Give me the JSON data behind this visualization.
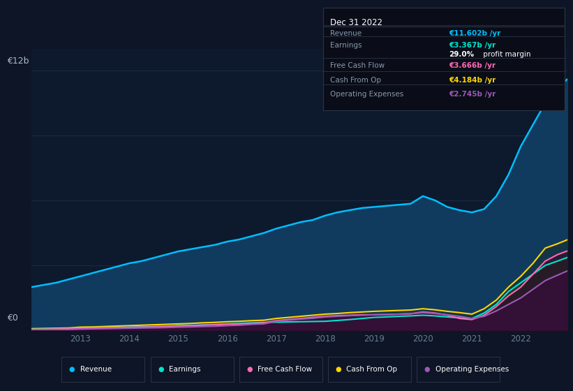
{
  "bg_color": "#0d1526",
  "chart_bg": "#0d1a2e",
  "grid_color": "#1e2d45",
  "years": [
    2012.0,
    2012.25,
    2012.5,
    2012.75,
    2013.0,
    2013.25,
    2013.5,
    2013.75,
    2014.0,
    2014.25,
    2014.5,
    2014.75,
    2015.0,
    2015.25,
    2015.5,
    2015.75,
    2016.0,
    2016.25,
    2016.5,
    2016.75,
    2017.0,
    2017.25,
    2017.5,
    2017.75,
    2018.0,
    2018.25,
    2018.5,
    2018.75,
    2019.0,
    2019.25,
    2019.5,
    2019.75,
    2020.0,
    2020.25,
    2020.5,
    2020.75,
    2021.0,
    2021.25,
    2021.5,
    2021.75,
    2022.0,
    2022.25,
    2022.5,
    2022.75,
    2022.95
  ],
  "revenue": [
    2.0,
    2.1,
    2.2,
    2.35,
    2.5,
    2.65,
    2.8,
    2.95,
    3.1,
    3.2,
    3.35,
    3.5,
    3.65,
    3.75,
    3.85,
    3.95,
    4.1,
    4.2,
    4.35,
    4.5,
    4.7,
    4.85,
    5.0,
    5.1,
    5.3,
    5.45,
    5.55,
    5.65,
    5.7,
    5.75,
    5.8,
    5.85,
    6.2,
    6.0,
    5.7,
    5.55,
    5.45,
    5.6,
    6.2,
    7.2,
    8.5,
    9.5,
    10.5,
    11.2,
    11.6
  ],
  "earnings": [
    0.05,
    0.06,
    0.07,
    0.08,
    0.1,
    0.11,
    0.13,
    0.14,
    0.15,
    0.16,
    0.18,
    0.19,
    0.22,
    0.23,
    0.25,
    0.27,
    0.3,
    0.32,
    0.35,
    0.37,
    0.38,
    0.39,
    0.4,
    0.41,
    0.42,
    0.46,
    0.5,
    0.55,
    0.6,
    0.62,
    0.65,
    0.67,
    0.7,
    0.67,
    0.62,
    0.58,
    0.55,
    0.8,
    1.2,
    1.8,
    2.2,
    2.6,
    3.0,
    3.2,
    3.367
  ],
  "fcf": [
    0.04,
    0.05,
    0.06,
    0.07,
    0.1,
    0.11,
    0.12,
    0.13,
    0.14,
    0.15,
    0.16,
    0.17,
    0.2,
    0.22,
    0.24,
    0.26,
    0.28,
    0.3,
    0.32,
    0.35,
    0.45,
    0.5,
    0.55,
    0.6,
    0.65,
    0.68,
    0.7,
    0.72,
    0.72,
    0.73,
    0.75,
    0.77,
    0.85,
    0.8,
    0.7,
    0.55,
    0.5,
    0.7,
    1.1,
    1.6,
    2.0,
    2.6,
    3.2,
    3.5,
    3.666
  ],
  "cashfromop": [
    0.08,
    0.09,
    0.1,
    0.11,
    0.15,
    0.16,
    0.18,
    0.2,
    0.22,
    0.24,
    0.26,
    0.28,
    0.3,
    0.32,
    0.35,
    0.37,
    0.4,
    0.42,
    0.45,
    0.47,
    0.55,
    0.6,
    0.65,
    0.7,
    0.75,
    0.78,
    0.82,
    0.85,
    0.88,
    0.9,
    0.92,
    0.94,
    1.0,
    0.95,
    0.88,
    0.82,
    0.75,
    1.0,
    1.4,
    2.0,
    2.5,
    3.1,
    3.8,
    4.0,
    4.184
  ],
  "opex": [
    0.02,
    0.03,
    0.04,
    0.04,
    0.06,
    0.07,
    0.08,
    0.09,
    0.1,
    0.11,
    0.12,
    0.13,
    0.15,
    0.16,
    0.18,
    0.19,
    0.22,
    0.24,
    0.28,
    0.3,
    0.42,
    0.47,
    0.52,
    0.56,
    0.62,
    0.65,
    0.68,
    0.7,
    0.72,
    0.73,
    0.75,
    0.77,
    0.82,
    0.78,
    0.72,
    0.65,
    0.55,
    0.65,
    0.9,
    1.2,
    1.5,
    1.9,
    2.3,
    2.55,
    2.745
  ],
  "revenue_color": "#00bfff",
  "earnings_color": "#00e5cc",
  "fcf_color": "#ff69b4",
  "cashfromop_color": "#ffd700",
  "opex_color": "#9b59b6",
  "ylabel_12b": "€12b",
  "ylabel_0": "€0",
  "x_ticks": [
    2013,
    2014,
    2015,
    2016,
    2017,
    2018,
    2019,
    2020,
    2021,
    2022
  ],
  "ylim": [
    0,
    13.0
  ],
  "info_box": {
    "title": "Dec 31 2022",
    "rows": [
      {
        "label": "Revenue",
        "value": "€11.602b /yr",
        "value_color": "#00bfff"
      },
      {
        "label": "Earnings",
        "value": "€3.367b /yr",
        "value_color": "#00e5cc"
      },
      {
        "label": "",
        "value": "29.0% profit margin",
        "value_color": "#ffffff",
        "bold_part": "29.0%"
      },
      {
        "label": "Free Cash Flow",
        "value": "€3.666b /yr",
        "value_color": "#ff69b4"
      },
      {
        "label": "Cash From Op",
        "value": "€4.184b /yr",
        "value_color": "#ffd700"
      },
      {
        "label": "Operating Expenses",
        "value": "€2.745b /yr",
        "value_color": "#9b59b6"
      }
    ]
  },
  "legend": [
    {
      "label": "Revenue",
      "color": "#00bfff"
    },
    {
      "label": "Earnings",
      "color": "#00e5cc"
    },
    {
      "label": "Free Cash Flow",
      "color": "#ff69b4"
    },
    {
      "label": "Cash From Op",
      "color": "#ffd700"
    },
    {
      "label": "Operating Expenses",
      "color": "#9b59b6"
    }
  ]
}
